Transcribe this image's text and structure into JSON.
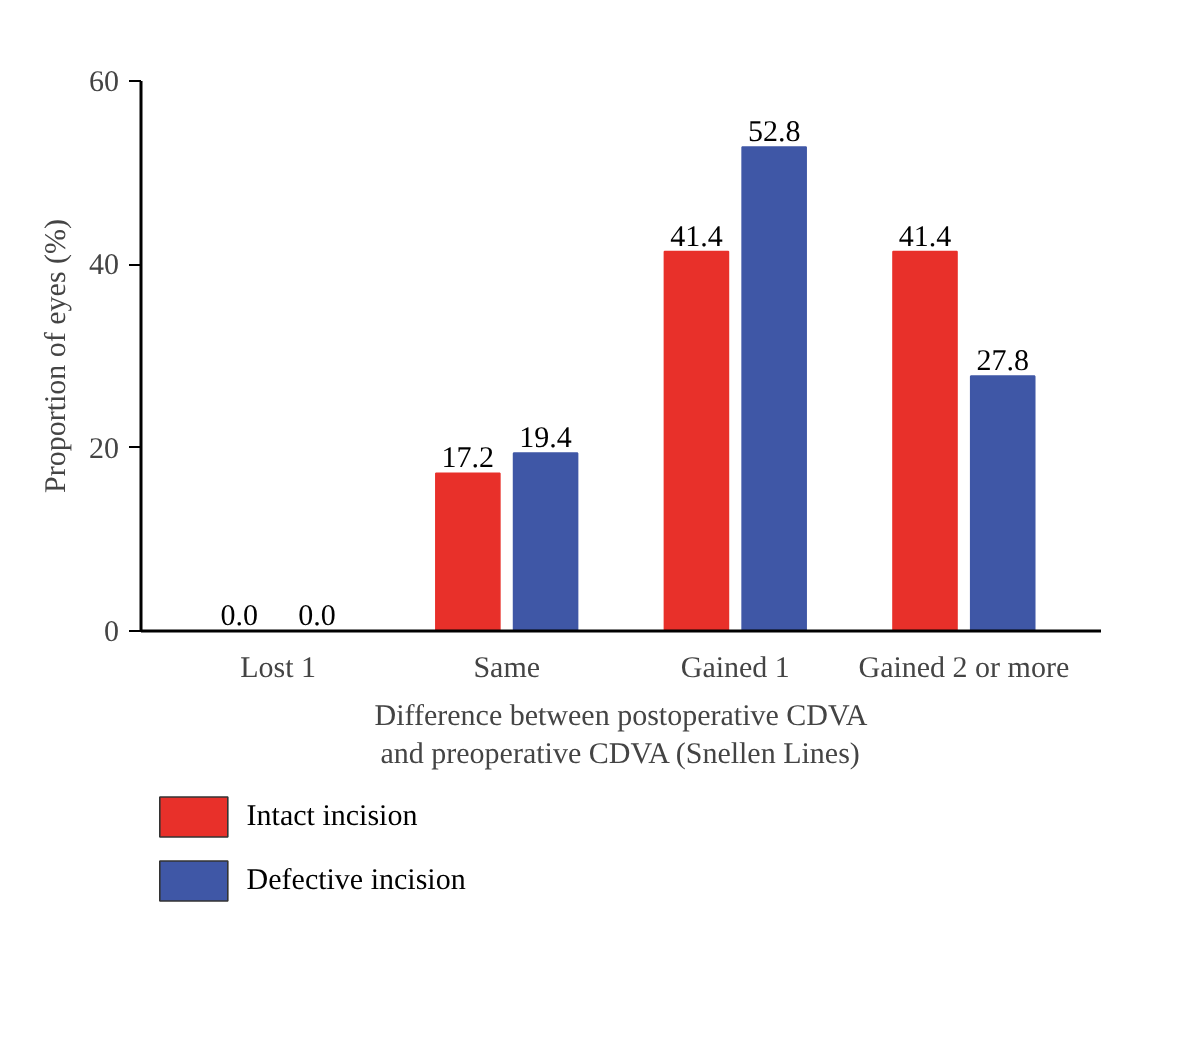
{
  "chart_data": {
    "type": "bar",
    "categories": [
      "Lost 1",
      "Same",
      "Gained 1",
      "Gained 2 or more"
    ],
    "series": [
      {
        "name": "Intact incision",
        "color": "#e8302a",
        "values": [
          0.0,
          17.2,
          41.4,
          41.4
        ],
        "value_labels": [
          "0.0",
          "17.2",
          "41.4",
          "41.4"
        ]
      },
      {
        "name": "Defective incision",
        "color": "#3f57a6",
        "values": [
          0.0,
          19.4,
          52.8,
          27.8
        ],
        "value_labels": [
          "0.0",
          "19.4",
          "52.8",
          "27.8"
        ]
      }
    ],
    "xlabel": "Difference between postoperative CDVA\nand preoperative CDVA (Snellen Lines)",
    "ylabel": "Proportion of eyes (%)",
    "ylim": [
      0,
      60
    ],
    "yticks": [
      0,
      20,
      40,
      60
    ],
    "grid": false,
    "legend": "bottom left"
  }
}
